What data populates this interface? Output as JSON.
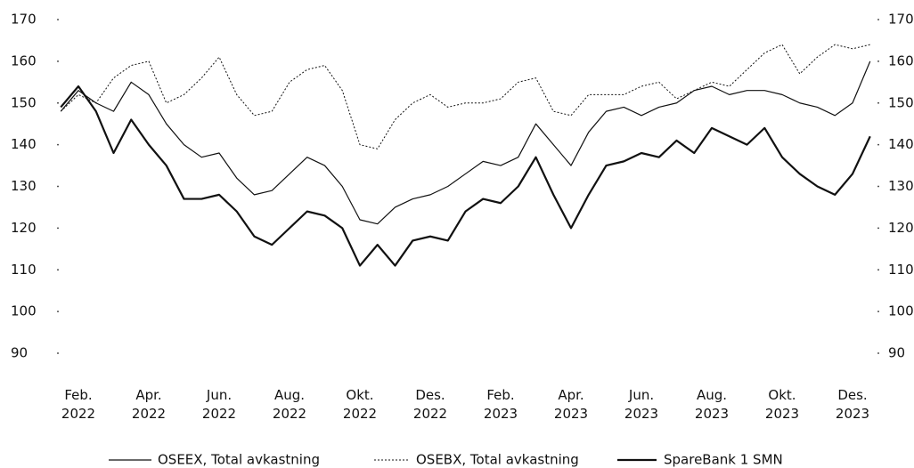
{
  "chart_data": {
    "type": "line",
    "categories": [
      null,
      "Feb. 2022",
      null,
      null,
      null,
      "Apr. 2022",
      null,
      null,
      null,
      "Jun. 2022",
      null,
      null,
      null,
      "Aug. 2022",
      null,
      null,
      null,
      "Okt. 2022",
      null,
      null,
      null,
      "Des. 2022",
      null,
      null,
      null,
      "Feb. 2023",
      null,
      null,
      null,
      "Apr. 2023",
      null,
      null,
      null,
      "Jun. 2023",
      null,
      null,
      null,
      "Aug. 2023",
      null,
      null,
      null,
      "Okt. 2023",
      null,
      null,
      null,
      "Des. 2023",
      null
    ],
    "series": [
      {
        "name": "OSEEX, Total avkastning",
        "color": "#111111",
        "style": "thin",
        "values": [
          148,
          153,
          150,
          148,
          155,
          152,
          145,
          140,
          137,
          138,
          132,
          128,
          129,
          133,
          137,
          135,
          130,
          122,
          121,
          125,
          127,
          128,
          130,
          133,
          136,
          135,
          137,
          145,
          140,
          135,
          143,
          148,
          149,
          147,
          149,
          150,
          153,
          154,
          152,
          153,
          153,
          152,
          150,
          149,
          147,
          150,
          160
        ]
      },
      {
        "name": "OSEBX, Total avkastning",
        "color": "#111111",
        "style": "dotted",
        "values": [
          148,
          152,
          150,
          156,
          159,
          160,
          150,
          152,
          156,
          161,
          152,
          147,
          148,
          155,
          158,
          159,
          153,
          140,
          139,
          146,
          150,
          152,
          149,
          150,
          150,
          151,
          155,
          156,
          148,
          147,
          152,
          152,
          152,
          154,
          155,
          151,
          153,
          155,
          154,
          158,
          162,
          164,
          157,
          161,
          164,
          163,
          164
        ]
      },
      {
        "name": "SpareBank 1 SMN",
        "color": "#111111",
        "style": "thick",
        "values": [
          149,
          154,
          148,
          138,
          146,
          140,
          135,
          127,
          127,
          128,
          124,
          118,
          116,
          120,
          124,
          123,
          120,
          111,
          116,
          111,
          117,
          118,
          117,
          124,
          127,
          126,
          130,
          137,
          128,
          120,
          128,
          135,
          136,
          138,
          137,
          141,
          138,
          144,
          142,
          140,
          144,
          137,
          133,
          130,
          128,
          133,
          142
        ]
      }
    ],
    "ylim": [
      90,
      170
    ],
    "yticks": [
      90,
      100,
      110,
      120,
      130,
      140,
      150,
      160,
      170
    ],
    "y2lim": [
      90,
      170
    ],
    "y2ticks": [
      90,
      100,
      110,
      120,
      130,
      140,
      150,
      160,
      170
    ],
    "grid": false,
    "legend": "bottom"
  }
}
